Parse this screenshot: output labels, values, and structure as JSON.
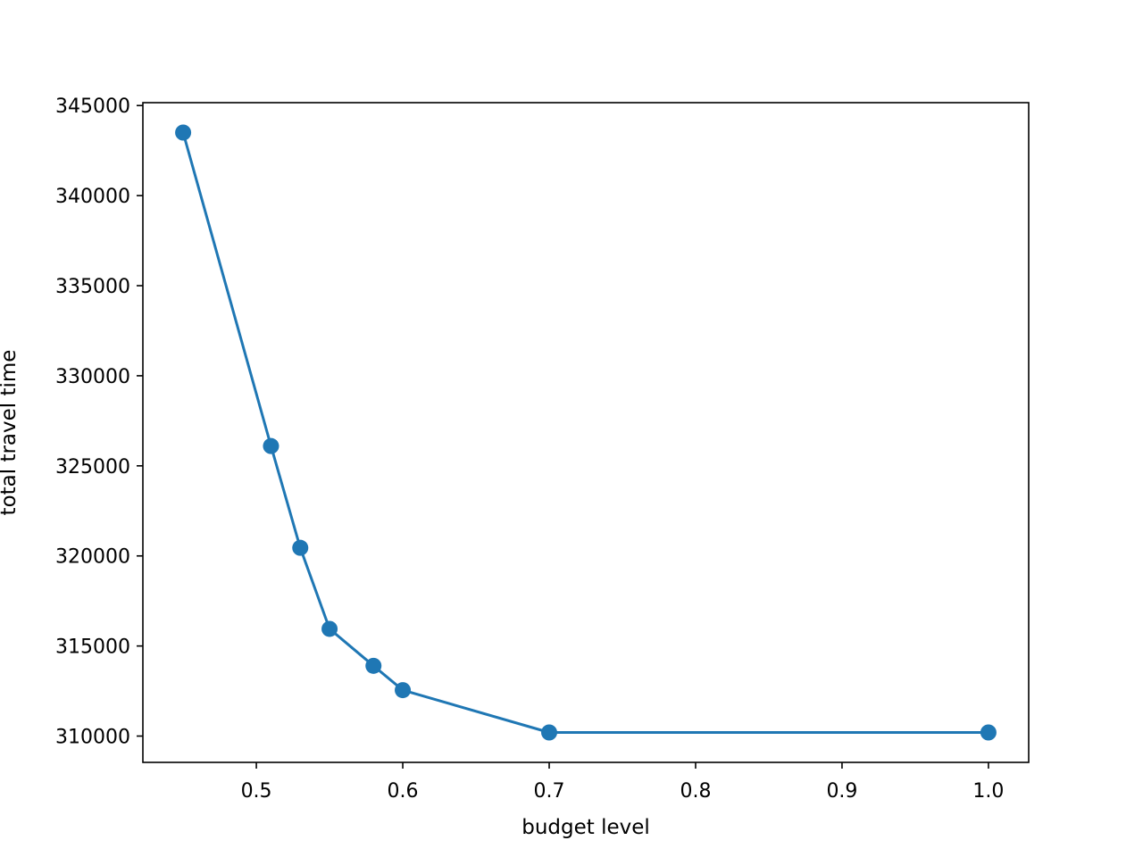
{
  "chart_data": {
    "type": "line",
    "title": "",
    "xlabel": "budget level",
    "ylabel": "total travel time",
    "x": [
      0.45,
      0.51,
      0.53,
      0.55,
      0.58,
      0.6,
      0.7,
      1.0
    ],
    "series": [
      {
        "values": [
          343500,
          326100,
          320450,
          315950,
          313900,
          312550,
          310200,
          310200
        ],
        "color": "#1f77b4",
        "marker": "circle"
      }
    ],
    "xlim": [
      0.4225,
      1.0275
    ],
    "ylim": [
      308540,
      345160
    ],
    "xticks": [
      0.5,
      0.6,
      0.7,
      0.8,
      0.9,
      1.0
    ],
    "xtick_labels": [
      "0.5",
      "0.6",
      "0.7",
      "0.8",
      "0.9",
      "1.0"
    ],
    "yticks": [
      310000,
      315000,
      320000,
      325000,
      330000,
      335000,
      340000,
      345000
    ],
    "ytick_labels": [
      "310000",
      "315000",
      "320000",
      "325000",
      "330000",
      "335000",
      "340000",
      "345000"
    ],
    "grid": false,
    "legend": "none"
  }
}
